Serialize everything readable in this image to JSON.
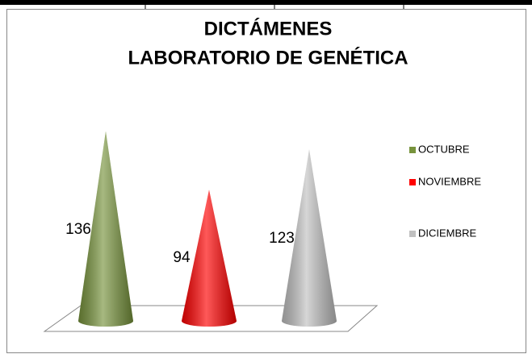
{
  "chart_data": {
    "type": "cone",
    "title": [
      "DICTÁMENES",
      "LABORATORIO DE GENÉTICA"
    ],
    "categories": [
      "OCTUBRE",
      "NOVIEMBRE",
      "DICIEMBRE"
    ],
    "values": [
      136,
      94,
      123
    ],
    "colors": [
      "#77933c",
      "#ff0000",
      "#c0c0c0"
    ],
    "legend": "right"
  }
}
